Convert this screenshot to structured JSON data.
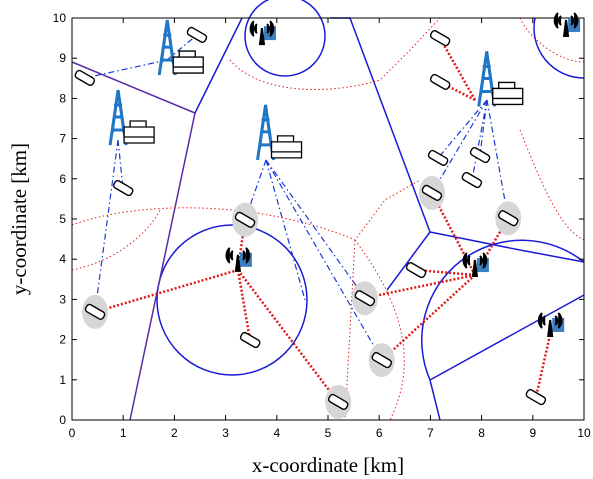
{
  "chart_data": {
    "type": "scatter",
    "xlabel": "x-coordinate [km]",
    "ylabel": "y-coordinate [km]",
    "xlim": [
      0,
      10
    ],
    "ylim": [
      0,
      10
    ],
    "xticks": [
      0,
      1,
      2,
      3,
      4,
      5,
      6,
      7,
      8,
      9,
      10
    ],
    "yticks": [
      0,
      1,
      2,
      3,
      4,
      5,
      6,
      7,
      8,
      9,
      10
    ],
    "series": [
      {
        "marker": "macro-bs",
        "color": "#1f77c8",
        "x": [
          1.86,
          0.9,
          3.78,
          8.1
        ],
        "values": [
          8.58,
          6.84,
          6.47,
          7.8
        ]
      },
      {
        "marker": "small-bs",
        "color": "#3a7fc4",
        "x": [
          3.24,
          7.87,
          9.34,
          3.71,
          9.65
        ],
        "values": [
          3.86,
          3.73,
          2.24,
          9.5,
          9.7
        ]
      },
      {
        "marker": "user",
        "color": "#ffffff",
        "x": [
          2.44,
          7.19,
          0.25,
          7.19,
          1.0,
          7.15,
          7.81,
          7.97,
          3.48,
          6.72,
          9.06
        ],
        "values": [
          9.58,
          9.5,
          8.51,
          8.41,
          5.77,
          6.52,
          5.97,
          6.59,
          1.99,
          3.73,
          0.57
        ]
      },
      {
        "marker": "user",
        "color": "#d6d6d6",
        "x": [
          7.03,
          3.38,
          8.52,
          0.45,
          5.72,
          6.05,
          5.2
        ],
        "values": [
          5.65,
          4.98,
          5.02,
          2.69,
          3.03,
          1.49,
          0.45
        ]
      }
    ]
  }
}
